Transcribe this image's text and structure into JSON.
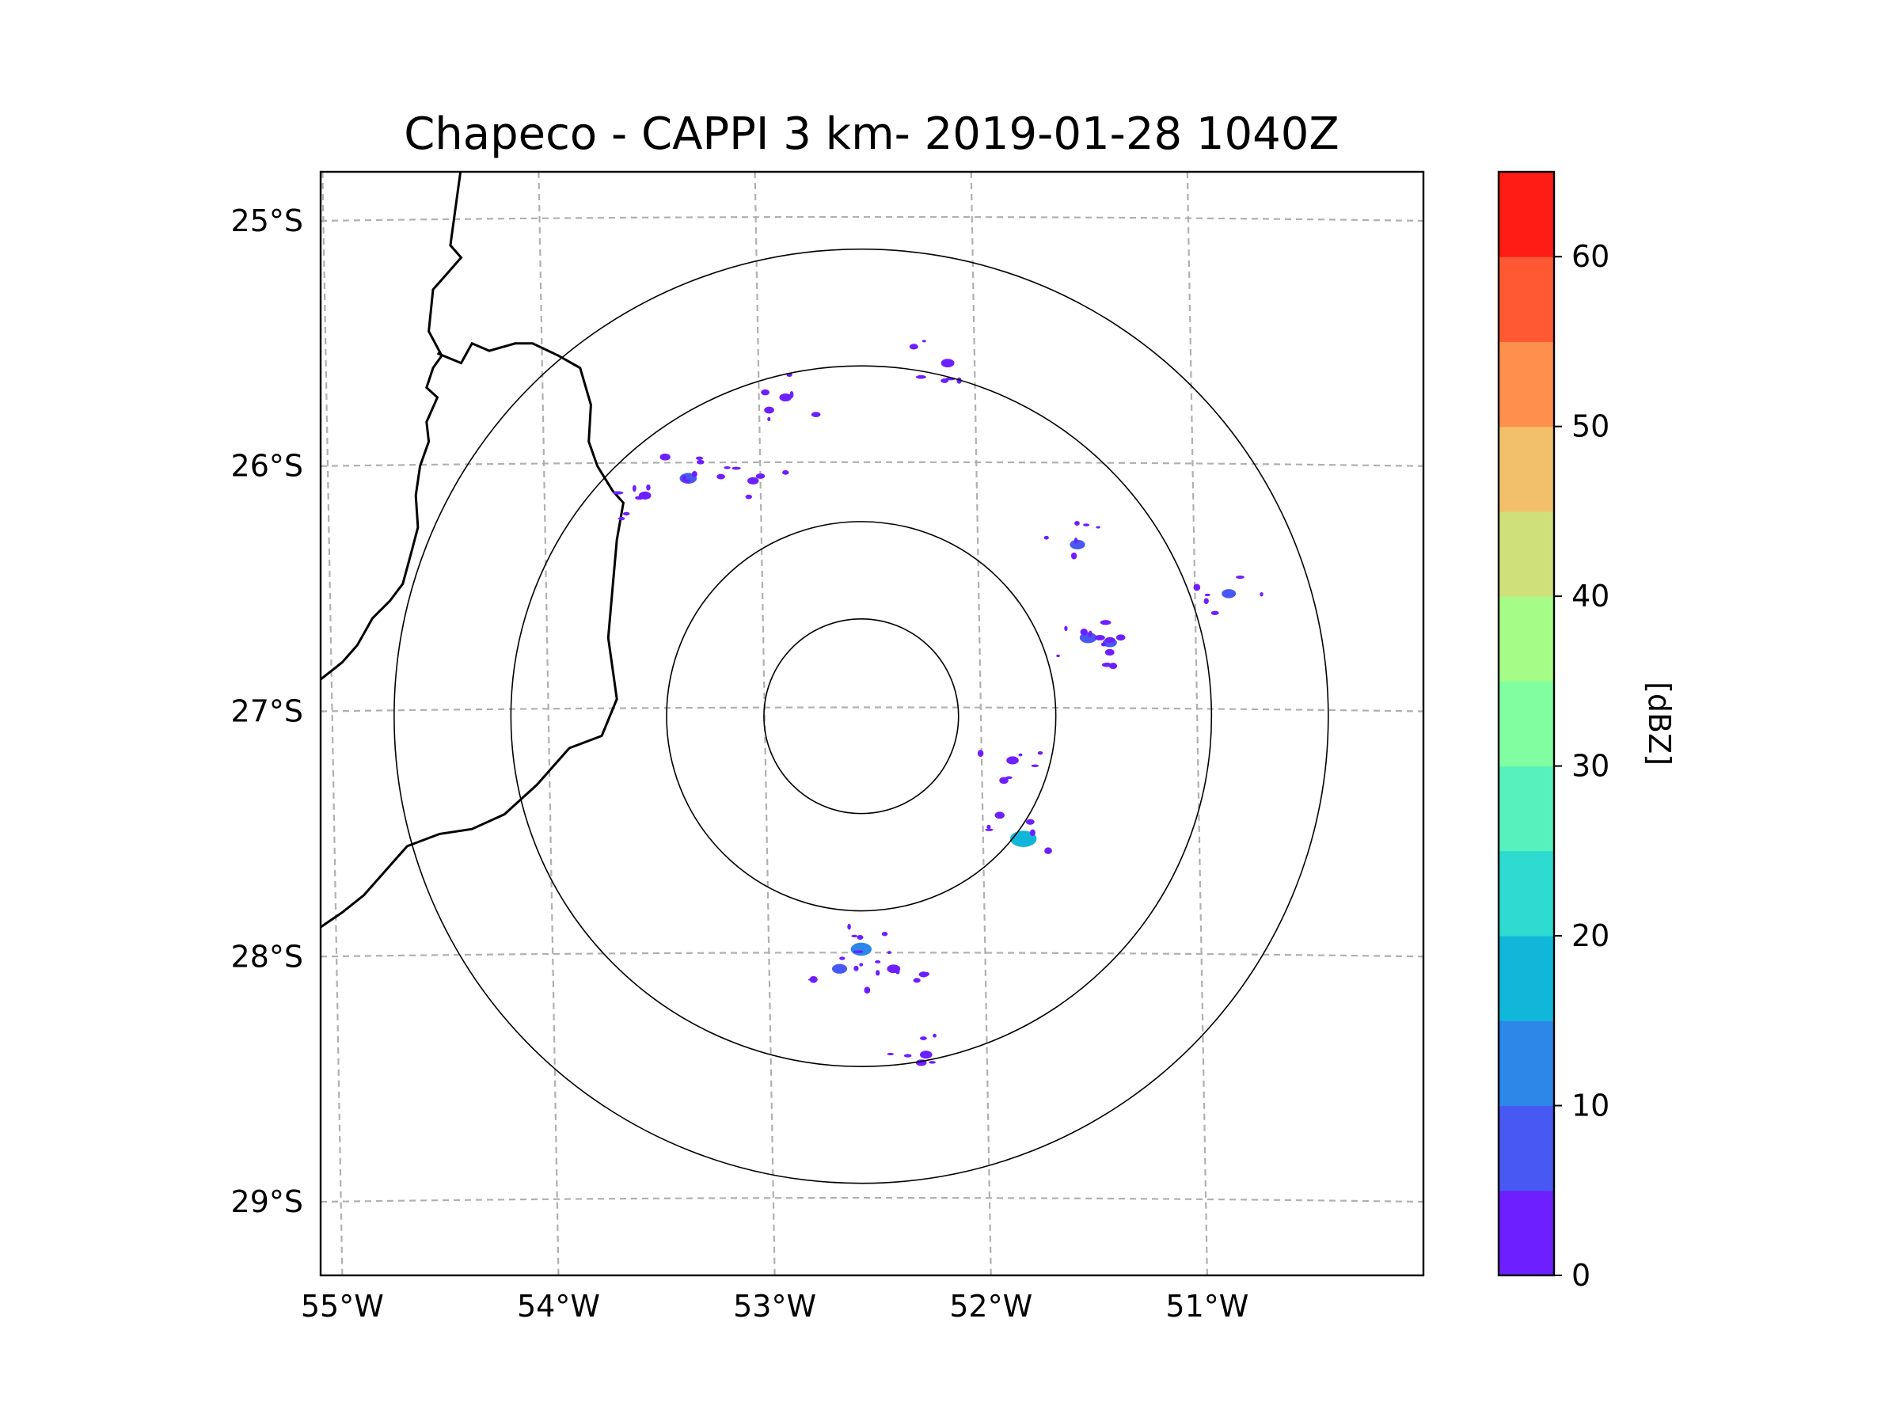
{
  "chart_data": {
    "type": "heatmap",
    "subtype": "radar-cappi-map",
    "title": "Chapeco - CAPPI 3 km- 2019-01-28 1040Z",
    "xlabel": "",
    "ylabel": "",
    "x_ticks": [
      {
        "value": -55,
        "label": "55°W"
      },
      {
        "value": -54,
        "label": "54°W"
      },
      {
        "value": -53,
        "label": "53°W"
      },
      {
        "value": -52,
        "label": "52°W"
      },
      {
        "value": -51,
        "label": "51°W"
      }
    ],
    "y_ticks": [
      {
        "value": -25,
        "label": "25°S"
      },
      {
        "value": -26,
        "label": "26°S"
      },
      {
        "value": -27,
        "label": "27°S"
      },
      {
        "value": -28,
        "label": "28°S"
      },
      {
        "value": -29,
        "label": "29°S"
      }
    ],
    "xlim": [
      -55.1,
      -50.0
    ],
    "ylim": [
      -29.3,
      -24.8
    ],
    "grid": true,
    "radar_site": {
      "name": "Chapeco",
      "lon": -52.6,
      "lat": -27.02
    },
    "range_rings_deg": [
      0.45,
      0.9,
      1.62,
      2.16
    ],
    "colorbar": {
      "label": "[dBZ]",
      "min": 0,
      "max": 65,
      "step": 5,
      "tick_values": [
        0,
        10,
        20,
        30,
        40,
        50,
        60
      ],
      "tick_labels": [
        "0",
        "10",
        "20",
        "30",
        "40",
        "50",
        "60"
      ],
      "colors": [
        "#6e1fff",
        "#4758f3",
        "#2c87e8",
        "#11b7d8",
        "#2ddbd1",
        "#56f1bc",
        "#81fe9f",
        "#a5fd88",
        "#cfe07a",
        "#f2c06a",
        "#ff8f4d",
        "#ff5933",
        "#ff1c14"
      ]
    },
    "borders": [
      [
        [
          -54.45,
          -24.78
        ],
        [
          -54.5,
          -25.1
        ],
        [
          -54.45,
          -25.15
        ],
        [
          -54.5,
          -25.2
        ],
        [
          -54.58,
          -25.28
        ],
        [
          -54.6,
          -25.45
        ],
        [
          -54.54,
          -25.55
        ],
        [
          -54.58,
          -25.6
        ],
        [
          -54.61,
          -25.68
        ],
        [
          -54.56,
          -25.72
        ],
        [
          -54.61,
          -25.82
        ],
        [
          -54.6,
          -25.9
        ],
        [
          -54.64,
          -26.0
        ],
        [
          -54.66,
          -26.12
        ],
        [
          -54.65,
          -26.25
        ],
        [
          -54.68,
          -26.35
        ],
        [
          -54.72,
          -26.48
        ],
        [
          -54.78,
          -26.55
        ],
        [
          -54.86,
          -26.62
        ],
        [
          -54.93,
          -26.73
        ],
        [
          -55.0,
          -26.8
        ],
        [
          -55.1,
          -26.87
        ]
      ],
      [
        [
          -54.56,
          -25.54
        ],
        [
          -54.45,
          -25.58
        ],
        [
          -54.4,
          -25.5
        ],
        [
          -54.32,
          -25.53
        ],
        [
          -54.2,
          -25.5
        ],
        [
          -54.12,
          -25.5
        ],
        [
          -54.0,
          -25.55
        ],
        [
          -53.9,
          -25.6
        ],
        [
          -53.85,
          -25.75
        ],
        [
          -53.86,
          -25.9
        ],
        [
          -53.82,
          -26.0
        ],
        [
          -53.75,
          -26.1
        ],
        [
          -53.7,
          -26.15
        ],
        [
          -53.73,
          -26.3
        ],
        [
          -53.75,
          -26.5
        ],
        [
          -53.77,
          -26.7
        ],
        [
          -53.73,
          -26.95
        ],
        [
          -53.8,
          -27.1
        ],
        [
          -53.95,
          -27.15
        ],
        [
          -54.1,
          -27.3
        ],
        [
          -54.25,
          -27.42
        ],
        [
          -54.4,
          -27.48
        ],
        [
          -54.55,
          -27.5
        ],
        [
          -54.7,
          -27.55
        ],
        [
          -54.8,
          -27.65
        ],
        [
          -54.9,
          -27.75
        ],
        [
          -55.0,
          -27.82
        ],
        [
          -55.1,
          -27.88
        ]
      ]
    ],
    "echoes_dbz_points": [
      {
        "lon": -53.4,
        "lat": -26.05,
        "dbz": 8
      },
      {
        "lon": -53.6,
        "lat": -26.12,
        "dbz": 3
      },
      {
        "lon": -53.1,
        "lat": -26.06,
        "dbz": 2
      },
      {
        "lon": -52.95,
        "lat": -25.72,
        "dbz": 3
      },
      {
        "lon": -52.2,
        "lat": -25.58,
        "dbz": 4
      },
      {
        "lon": -51.6,
        "lat": -26.32,
        "dbz": 6
      },
      {
        "lon": -51.55,
        "lat": -26.7,
        "dbz": 8
      },
      {
        "lon": -51.45,
        "lat": -26.72,
        "dbz": 5
      },
      {
        "lon": -50.9,
        "lat": -26.52,
        "dbz": 5
      },
      {
        "lon": -52.6,
        "lat": -27.97,
        "dbz": 12
      },
      {
        "lon": -52.7,
        "lat": -28.05,
        "dbz": 6
      },
      {
        "lon": -52.45,
        "lat": -28.05,
        "dbz": 4
      },
      {
        "lon": -51.9,
        "lat": -27.2,
        "dbz": 3
      },
      {
        "lon": -52.3,
        "lat": -28.4,
        "dbz": 3
      },
      {
        "lon": -51.85,
        "lat": -27.52,
        "dbz": 18
      }
    ]
  }
}
